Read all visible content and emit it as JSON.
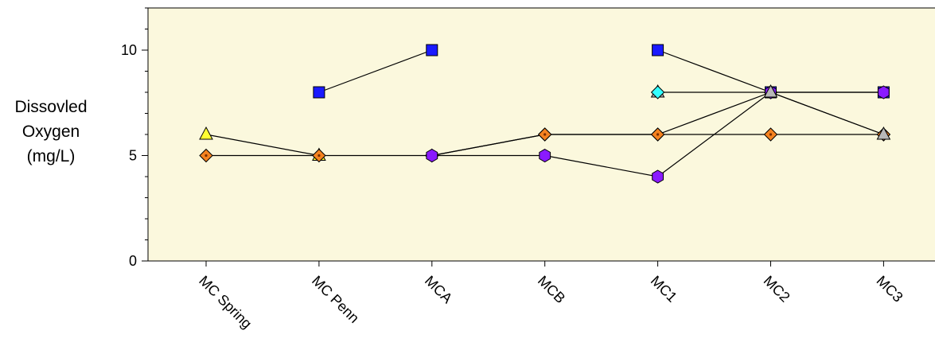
{
  "chart_data": {
    "type": "line",
    "title": "",
    "ylabel_lines": [
      "Dissovled",
      "Oxygen",
      "(mg/L)"
    ],
    "xlabel": "",
    "categories": [
      "MC Spring",
      "MC Penn",
      "MCA",
      "MCB",
      "MC1",
      "MC2",
      "MC3"
    ],
    "ylim": [
      0,
      12
    ],
    "yticks": [
      0,
      5,
      10
    ],
    "y_minor_step": 1,
    "grid": false,
    "legend": "none",
    "colors": {
      "plot_background": "#fbf8dd",
      "square": "#1a1aff",
      "triangle": "#ffff33",
      "diamond": "#f5821f",
      "diamond_dot": "#7a2e00",
      "hexagon": "#8a1aff",
      "cyan_diamond": "#33ffff",
      "gray_triangle": "#b8b8b8"
    },
    "series": [
      {
        "marker": "square",
        "color": "#1a1aff",
        "points": [
          [
            1,
            8
          ],
          [
            2,
            10
          ]
        ]
      },
      {
        "marker": "square",
        "color": "#1a1aff",
        "points": [
          [
            4,
            10
          ],
          [
            5,
            8
          ],
          [
            6,
            8
          ]
        ]
      },
      {
        "marker": "triangle",
        "color": "#ffff33",
        "points": [
          [
            0,
            6
          ],
          [
            1,
            5
          ]
        ]
      },
      {
        "marker": "diamond",
        "color": "#f5821f",
        "points": [
          [
            0,
            5
          ],
          [
            1,
            5
          ],
          [
            2,
            5
          ],
          [
            3,
            6
          ],
          [
            4,
            6
          ],
          [
            5,
            6
          ],
          [
            6,
            6
          ]
        ]
      },
      {
        "marker": "diamond",
        "color": "#f5821f",
        "points": [
          [
            2,
            5
          ],
          [
            3,
            6
          ],
          [
            4,
            6
          ],
          [
            5,
            8
          ],
          [
            6,
            6
          ]
        ]
      },
      {
        "marker": "hexagon",
        "color": "#8a1aff",
        "points": [
          [
            2,
            5
          ],
          [
            3,
            5
          ],
          [
            4,
            4
          ],
          [
            5,
            8
          ],
          [
            6,
            8
          ]
        ]
      },
      {
        "marker": "triangle",
        "color": "#b8b8b8",
        "points": [
          [
            4,
            8
          ],
          [
            5,
            8
          ],
          [
            6,
            6
          ]
        ]
      },
      {
        "marker": "diamond",
        "color": "#33ffff",
        "points": [
          [
            4,
            8
          ]
        ]
      }
    ]
  }
}
